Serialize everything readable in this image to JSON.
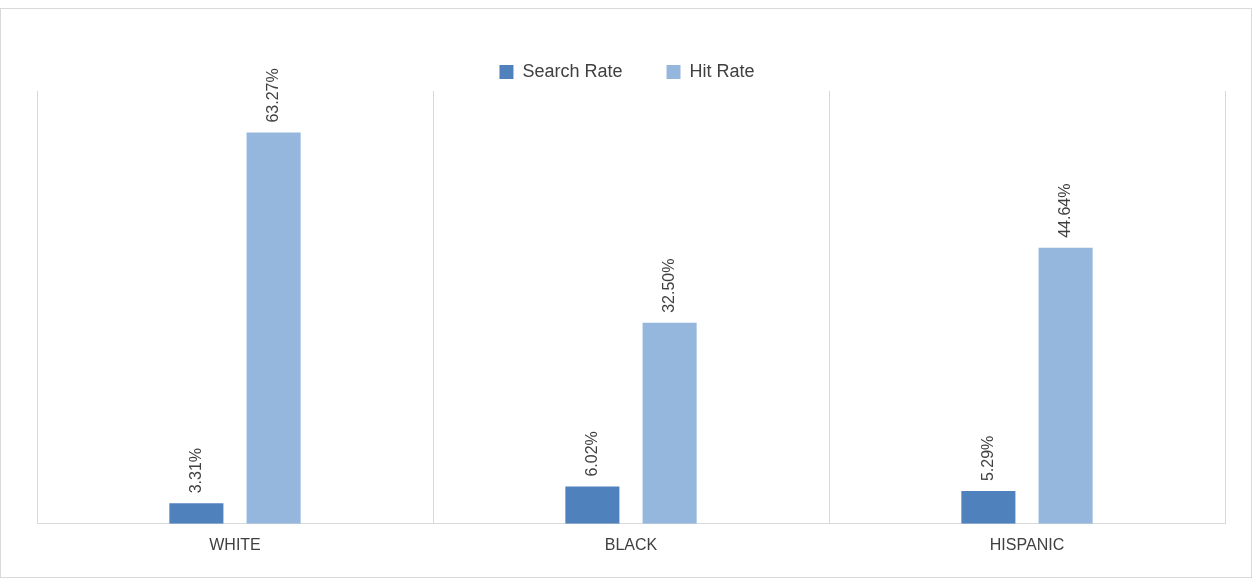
{
  "chart_data": {
    "type": "bar",
    "categories": [
      "WHITE",
      "BLACK",
      "HISPANIC"
    ],
    "series": [
      {
        "name": "Search Rate",
        "color": "#4f81bd",
        "values": [
          3.31,
          6.02,
          5.29
        ],
        "value_labels": [
          "3.31%",
          "6.02%",
          "5.29%"
        ]
      },
      {
        "name": "Hit Rate",
        "color": "#95b7de",
        "values": [
          63.27,
          32.5,
          44.64
        ],
        "value_labels": [
          "63.27%",
          "32.50%",
          "44.64%"
        ]
      }
    ],
    "grid": "x",
    "legend": "top",
    "tick_labels": "x"
  }
}
